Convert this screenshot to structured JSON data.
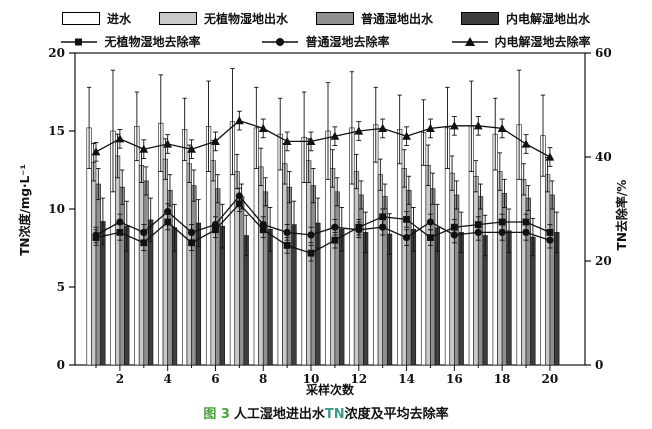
{
  "legend": {
    "bars": [
      {
        "label": "进水",
        "color": "#ffffff"
      },
      {
        "label": "无植物湿地出水",
        "color": "#c9c9c9"
      },
      {
        "label": "普通湿地出水",
        "color": "#8f8f8f"
      },
      {
        "label": "内电解湿地出水",
        "color": "#3d3d3d"
      }
    ],
    "lines": [
      {
        "label": "无植物湿地去除率",
        "marker": "square"
      },
      {
        "label": "普通湿地去除率",
        "marker": "circle"
      },
      {
        "label": "内电解湿地去除率",
        "marker": "triangle"
      }
    ]
  },
  "axes": {
    "left_label": "TN浓度/mg·L⁻¹",
    "right_label": "TN去除率/%",
    "x_label": "采样次数"
  },
  "caption": {
    "fig": "图 3",
    "pre": "人工湿地进出水",
    "tn": "TN",
    "post": "浓度及平均去除率"
  },
  "chart_data": {
    "type": "bar+line",
    "title": "图3 人工湿地进出水TN浓度及平均去除率",
    "xlabel": "采样次数",
    "ylabel_left": "TN浓度/mg·L⁻¹",
    "ylabel_right": "TN去除率/%",
    "x": [
      1,
      2,
      3,
      4,
      5,
      6,
      7,
      8,
      9,
      10,
      11,
      12,
      13,
      14,
      15,
      16,
      17,
      18,
      19,
      20
    ],
    "x_tick_labels": [
      2,
      4,
      6,
      8,
      10,
      12,
      14,
      16,
      18,
      20
    ],
    "left_axis": {
      "min": 0,
      "max": 20,
      "ticks": [
        0,
        5,
        10,
        15,
        20
      ]
    },
    "right_axis": {
      "min": 0,
      "max": 60,
      "ticks": [
        0,
        20,
        40,
        60
      ]
    },
    "grid": false,
    "legend_position": "top",
    "bar_series": [
      {
        "name": "进水",
        "color": "#ffffff",
        "axis": "left",
        "values": [
          15.2,
          15.0,
          15.3,
          15.5,
          15.1,
          15.3,
          15.6,
          15.2,
          14.8,
          14.6,
          15.0,
          15.2,
          15.4,
          15.1,
          14.9,
          15.2,
          15.3,
          14.8,
          15.4,
          14.7
        ],
        "errors": [
          2.6,
          3.9,
          2.2,
          3.1,
          2.0,
          2.9,
          3.4,
          2.6,
          2.3,
          2.9,
          3.1,
          3.6,
          2.4,
          2.2,
          2.1,
          2.6,
          2.9,
          2.3,
          3.5,
          2.6
        ]
      },
      {
        "name": "无植物湿地出水",
        "color": "#c9c9c9",
        "axis": "left",
        "values": [
          13.0,
          13.4,
          12.8,
          13.2,
          12.9,
          13.1,
          12.4,
          12.7,
          12.9,
          13.1,
          12.6,
          12.4,
          12.2,
          12.6,
          12.8,
          12.3,
          12.1,
          12.4,
          11.9,
          12.2
        ],
        "errors": [
          1.2,
          1.4,
          1.1,
          1.3,
          1.2,
          1.3,
          1.1,
          1.2,
          1.3,
          1.4,
          1.2,
          1.1,
          1.0,
          1.2,
          1.3,
          1.1,
          1.0,
          1.2,
          1.0,
          1.1
        ]
      },
      {
        "name": "普通湿地出水",
        "color": "#8f8f8f",
        "axis": "left",
        "values": [
          11.6,
          11.4,
          11.8,
          11.2,
          11.5,
          11.3,
          10.8,
          11.1,
          11.4,
          11.5,
          11.1,
          10.9,
          10.8,
          11.2,
          11.3,
          10.9,
          10.8,
          11.0,
          10.7,
          10.9
        ],
        "errors": [
          1.0,
          1.1,
          0.9,
          1.0,
          1.0,
          0.9,
          0.8,
          0.9,
          1.0,
          1.1,
          0.9,
          0.9,
          0.8,
          0.9,
          1.0,
          0.9,
          0.8,
          0.9,
          0.8,
          0.9
        ]
      },
      {
        "name": "内电解湿地出水",
        "color": "#3d3d3d",
        "axis": "left",
        "values": [
          9.2,
          8.9,
          9.3,
          8.8,
          9.1,
          8.9,
          8.3,
          8.7,
          9.0,
          9.1,
          8.7,
          8.5,
          8.4,
          8.7,
          8.8,
          8.5,
          8.3,
          8.6,
          8.2,
          8.5
        ],
        "errors": [
          1.5,
          1.6,
          1.4,
          1.5,
          1.5,
          1.4,
          1.3,
          1.4,
          1.5,
          1.6,
          1.4,
          1.3,
          1.3,
          1.4,
          1.5,
          1.3,
          1.3,
          1.4,
          1.2,
          1.3
        ]
      }
    ],
    "line_series": [
      {
        "name": "无植物湿地去除率",
        "marker": "square",
        "color": "#111111",
        "axis": "right",
        "error": 1.5,
        "values": [
          24.5,
          25.5,
          23.5,
          27.5,
          23.5,
          26,
          31,
          26,
          23,
          21.5,
          24,
          26.5,
          28.5,
          28,
          24.5,
          26.5,
          27,
          27.5,
          27.5,
          25.5
        ]
      },
      {
        "name": "普通湿地去除率",
        "marker": "circle",
        "color": "#111111",
        "axis": "right",
        "error": 1.5,
        "values": [
          25,
          27.5,
          25.5,
          29.5,
          25.5,
          27,
          32.5,
          27,
          25.5,
          25,
          26.5,
          26,
          26.5,
          24.5,
          27.5,
          25,
          25.5,
          25.5,
          25.5,
          24
        ]
      },
      {
        "name": "内电解湿地去除率",
        "marker": "triangle",
        "color": "#111111",
        "axis": "right",
        "error": 1.8,
        "values": [
          41,
          43.5,
          41.5,
          42.5,
          41.5,
          43,
          47,
          45.5,
          43,
          43,
          44,
          45,
          45.5,
          44,
          45.5,
          46,
          46,
          45.5,
          42.5,
          40
        ]
      }
    ]
  }
}
